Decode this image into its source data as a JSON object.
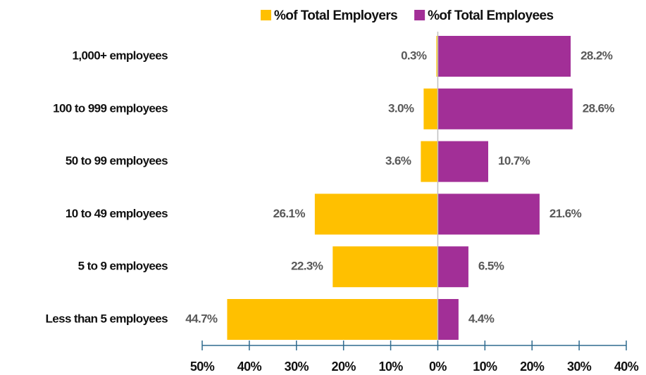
{
  "chart_data": {
    "type": "diverging_bar",
    "categories": [
      "1,000+ employees",
      "100 to 999 employees",
      "50 to 99 employees",
      "10 to 49 employees",
      "5 to 9 employees",
      "Less than 5 employees"
    ],
    "series": [
      {
        "name": "%of Total Employers",
        "color": "#ffc000",
        "values": [
          -0.3,
          -3.0,
          -3.6,
          -26.1,
          -22.3,
          -44.7
        ],
        "value_labels": [
          "0.3%",
          "3.0%",
          "3.6%",
          "26.1%",
          "22.3%",
          "44.7%"
        ]
      },
      {
        "name": "%of Total Employees",
        "color": "#a22f97",
        "values": [
          28.2,
          28.6,
          10.7,
          21.6,
          6.5,
          4.4
        ],
        "value_labels": [
          "28.2%",
          "28.6%",
          "10.7%",
          "21.6%",
          "6.5%",
          "4.4%"
        ]
      }
    ],
    "xlim": [
      -50,
      40
    ],
    "xticks": [
      {
        "value": -50,
        "label": "50%"
      },
      {
        "value": -40,
        "label": "40%"
      },
      {
        "value": -30,
        "label": "30%"
      },
      {
        "value": -20,
        "label": "20%"
      },
      {
        "value": -10,
        "label": "10%"
      },
      {
        "value": 0,
        "label": "0%"
      },
      {
        "value": 10,
        "label": "10%"
      },
      {
        "value": 20,
        "label": "20%"
      },
      {
        "value": 30,
        "label": "30%"
      },
      {
        "value": 40,
        "label": "40%"
      }
    ],
    "legend": "top"
  }
}
